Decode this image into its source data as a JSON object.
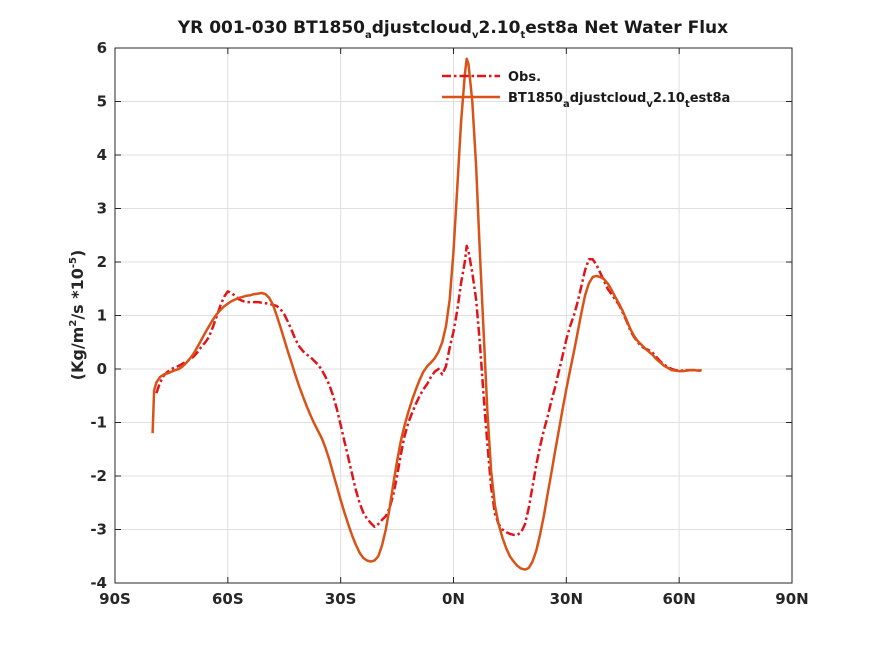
{
  "chart_data": {
    "type": "line",
    "title": {
      "prefix": "YR 001-030 BT1850",
      "parts": [
        [
          "a",
          "djustcloud"
        ],
        [
          "v",
          "2.10"
        ],
        [
          "t",
          "est8a"
        ]
      ],
      "suffix": "  Net Water Flux"
    },
    "ylabel": {
      "p1": "(Kg/m",
      "sup1": "2",
      "p2": "/s *10",
      "sup2": "-5",
      "p3": ")"
    },
    "xlim": [
      -90,
      90
    ],
    "ylim": [
      -4,
      6
    ],
    "x_ticks": [
      {
        "value": -90,
        "label": "90S"
      },
      {
        "value": -60,
        "label": "60S"
      },
      {
        "value": -30,
        "label": "30S"
      },
      {
        "value": 0,
        "label": "0N"
      },
      {
        "value": 30,
        "label": "30N"
      },
      {
        "value": 60,
        "label": "60N"
      },
      {
        "value": 90,
        "label": "90N"
      }
    ],
    "y_ticks": [
      {
        "value": -4,
        "label": "-4"
      },
      {
        "value": -3,
        "label": "-3"
      },
      {
        "value": -2,
        "label": "-2"
      },
      {
        "value": -1,
        "label": "-1"
      },
      {
        "value": 0,
        "label": "0"
      },
      {
        "value": 1,
        "label": "1"
      },
      {
        "value": 2,
        "label": "2"
      },
      {
        "value": 3,
        "label": "3"
      },
      {
        "value": 4,
        "label": "4"
      },
      {
        "value": 5,
        "label": "5"
      },
      {
        "value": 6,
        "label": "6"
      }
    ],
    "grid": true,
    "legend_position": "top-right",
    "series": [
      {
        "name": "Obs.",
        "color": "#e0151a",
        "style": "dashdot",
        "points": [
          [
            -79,
            -0.45
          ],
          [
            -78,
            -0.25
          ],
          [
            -77,
            -0.12
          ],
          [
            -76,
            -0.05
          ],
          [
            -75,
            0.0
          ],
          [
            -74,
            0.03
          ],
          [
            -73,
            0.06
          ],
          [
            -72,
            0.1
          ],
          [
            -71,
            0.14
          ],
          [
            -70,
            0.18
          ],
          [
            -69,
            0.24
          ],
          [
            -68,
            0.32
          ],
          [
            -67,
            0.42
          ],
          [
            -66,
            0.5
          ],
          [
            -65,
            0.6
          ],
          [
            -64,
            0.78
          ],
          [
            -63,
            0.98
          ],
          [
            -62,
            1.18
          ],
          [
            -61,
            1.35
          ],
          [
            -60,
            1.45
          ],
          [
            -59,
            1.42
          ],
          [
            -58,
            1.36
          ],
          [
            -57,
            1.3
          ],
          [
            -56,
            1.27
          ],
          [
            -55,
            1.25
          ],
          [
            -54,
            1.25
          ],
          [
            -53,
            1.25
          ],
          [
            -52,
            1.25
          ],
          [
            -51,
            1.24
          ],
          [
            -50,
            1.23
          ],
          [
            -49,
            1.22
          ],
          [
            -48,
            1.2
          ],
          [
            -47,
            1.18
          ],
          [
            -46,
            1.12
          ],
          [
            -45,
            1.02
          ],
          [
            -44,
            0.88
          ],
          [
            -43,
            0.72
          ],
          [
            -42,
            0.55
          ],
          [
            -41,
            0.42
          ],
          [
            -40,
            0.33
          ],
          [
            -39,
            0.27
          ],
          [
            -38,
            0.22
          ],
          [
            -37,
            0.15
          ],
          [
            -36,
            0.08
          ],
          [
            -35,
            -0.02
          ],
          [
            -34,
            -0.15
          ],
          [
            -33,
            -0.3
          ],
          [
            -32,
            -0.5
          ],
          [
            -31,
            -0.75
          ],
          [
            -30,
            -1.05
          ],
          [
            -29,
            -1.35
          ],
          [
            -28,
            -1.65
          ],
          [
            -27,
            -1.95
          ],
          [
            -26,
            -2.25
          ],
          [
            -25,
            -2.5
          ],
          [
            -24,
            -2.68
          ],
          [
            -23,
            -2.8
          ],
          [
            -22,
            -2.88
          ],
          [
            -21,
            -2.95
          ],
          [
            -20,
            -2.9
          ],
          [
            -19,
            -2.82
          ],
          [
            -18,
            -2.75
          ],
          [
            -17,
            -2.6
          ],
          [
            -16,
            -2.35
          ],
          [
            -15,
            -2.0
          ],
          [
            -14,
            -1.6
          ],
          [
            -13,
            -1.25
          ],
          [
            -12,
            -1.0
          ],
          [
            -11,
            -0.82
          ],
          [
            -10,
            -0.65
          ],
          [
            -9,
            -0.5
          ],
          [
            -8,
            -0.38
          ],
          [
            -7,
            -0.28
          ],
          [
            -6,
            -0.15
          ],
          [
            -5,
            -0.05
          ],
          [
            -4,
            0.0
          ],
          [
            -3,
            -0.1
          ],
          [
            -2,
            0.05
          ],
          [
            -1,
            0.4
          ],
          [
            0,
            0.7
          ],
          [
            1,
            1.1
          ],
          [
            2,
            1.6
          ],
          [
            3,
            2.0
          ],
          [
            3.5,
            2.3
          ],
          [
            4,
            2.2
          ],
          [
            5,
            1.8
          ],
          [
            6,
            1.3
          ],
          [
            7,
            0.5
          ],
          [
            8,
            -0.5
          ],
          [
            9,
            -1.4
          ],
          [
            10,
            -2.2
          ],
          [
            11,
            -2.7
          ],
          [
            12,
            -2.9
          ],
          [
            13,
            -3.0
          ],
          [
            14,
            -3.05
          ],
          [
            15,
            -3.08
          ],
          [
            16,
            -3.1
          ],
          [
            17,
            -3.1
          ],
          [
            18,
            -3.05
          ],
          [
            19,
            -2.9
          ],
          [
            20,
            -2.6
          ],
          [
            21,
            -2.2
          ],
          [
            22,
            -1.8
          ],
          [
            23,
            -1.45
          ],
          [
            24,
            -1.15
          ],
          [
            25,
            -0.9
          ],
          [
            26,
            -0.6
          ],
          [
            27,
            -0.35
          ],
          [
            28,
            -0.05
          ],
          [
            29,
            0.25
          ],
          [
            30,
            0.55
          ],
          [
            31,
            0.8
          ],
          [
            32,
            1.0
          ],
          [
            33,
            1.25
          ],
          [
            34,
            1.55
          ],
          [
            35,
            1.85
          ],
          [
            36,
            2.05
          ],
          [
            37,
            2.05
          ],
          [
            38,
            1.95
          ],
          [
            39,
            1.8
          ],
          [
            40,
            1.65
          ],
          [
            41,
            1.5
          ],
          [
            42,
            1.4
          ],
          [
            43,
            1.3
          ],
          [
            44,
            1.2
          ],
          [
            45,
            1.05
          ],
          [
            46,
            0.9
          ],
          [
            47,
            0.72
          ],
          [
            48,
            0.6
          ],
          [
            49,
            0.5
          ],
          [
            50,
            0.42
          ],
          [
            51,
            0.38
          ],
          [
            52,
            0.35
          ],
          [
            53,
            0.3
          ],
          [
            54,
            0.22
          ],
          [
            55,
            0.14
          ],
          [
            56,
            0.08
          ],
          [
            57,
            0.04
          ],
          [
            58,
            0.0
          ],
          [
            59,
            -0.02
          ],
          [
            60,
            -0.03
          ],
          [
            61,
            -0.03
          ],
          [
            62,
            -0.02
          ],
          [
            63,
            -0.02
          ],
          [
            64,
            -0.02
          ],
          [
            65,
            -0.03
          ],
          [
            66,
            -0.03
          ]
        ]
      },
      {
        "name": "BT1850adjustcloudv2.10test8a",
        "name_label": {
          "base": "BT1850",
          "parts": [
            [
              "a",
              "djustcloud"
            ],
            [
              "v",
              "2.10"
            ],
            [
              "t",
              "est8a"
            ]
          ]
        },
        "color": "#d95319",
        "style": "solid",
        "points": [
          [
            -80,
            -1.2
          ],
          [
            -79.6,
            -0.4
          ],
          [
            -79,
            -0.25
          ],
          [
            -78,
            -0.15
          ],
          [
            -77,
            -0.1
          ],
          [
            -76,
            -0.08
          ],
          [
            -75,
            -0.05
          ],
          [
            -74,
            -0.02
          ],
          [
            -73,
            0.0
          ],
          [
            -72,
            0.05
          ],
          [
            -71,
            0.12
          ],
          [
            -70,
            0.2
          ],
          [
            -69,
            0.3
          ],
          [
            -68,
            0.42
          ],
          [
            -67,
            0.55
          ],
          [
            -66,
            0.68
          ],
          [
            -65,
            0.8
          ],
          [
            -64,
            0.92
          ],
          [
            -63,
            1.02
          ],
          [
            -62,
            1.1
          ],
          [
            -61,
            1.17
          ],
          [
            -60,
            1.22
          ],
          [
            -59,
            1.27
          ],
          [
            -58,
            1.3
          ],
          [
            -57,
            1.33
          ],
          [
            -56,
            1.35
          ],
          [
            -55,
            1.37
          ],
          [
            -54,
            1.38
          ],
          [
            -53,
            1.4
          ],
          [
            -52,
            1.41
          ],
          [
            -51,
            1.42
          ],
          [
            -50,
            1.4
          ],
          [
            -49,
            1.33
          ],
          [
            -48,
            1.2
          ],
          [
            -47,
            1.0
          ],
          [
            -46,
            0.78
          ],
          [
            -45,
            0.55
          ],
          [
            -44,
            0.32
          ],
          [
            -43,
            0.1
          ],
          [
            -42,
            -0.12
          ],
          [
            -41,
            -0.33
          ],
          [
            -40,
            -0.52
          ],
          [
            -39,
            -0.7
          ],
          [
            -38,
            -0.87
          ],
          [
            -37,
            -1.02
          ],
          [
            -36,
            -1.16
          ],
          [
            -35,
            -1.3
          ],
          [
            -34,
            -1.48
          ],
          [
            -33,
            -1.7
          ],
          [
            -32,
            -1.95
          ],
          [
            -31,
            -2.2
          ],
          [
            -30,
            -2.45
          ],
          [
            -29,
            -2.68
          ],
          [
            -28,
            -2.9
          ],
          [
            -27,
            -3.1
          ],
          [
            -26,
            -3.28
          ],
          [
            -25,
            -3.43
          ],
          [
            -24,
            -3.53
          ],
          [
            -23,
            -3.58
          ],
          [
            -22,
            -3.6
          ],
          [
            -21,
            -3.58
          ],
          [
            -20,
            -3.5
          ],
          [
            -19,
            -3.3
          ],
          [
            -18,
            -3.0
          ],
          [
            -17,
            -2.6
          ],
          [
            -16,
            -2.15
          ],
          [
            -15,
            -1.72
          ],
          [
            -14,
            -1.35
          ],
          [
            -13,
            -1.05
          ],
          [
            -12,
            -0.8
          ],
          [
            -11,
            -0.58
          ],
          [
            -10,
            -0.38
          ],
          [
            -9,
            -0.2
          ],
          [
            -8,
            -0.05
          ],
          [
            -7,
            0.05
          ],
          [
            -6,
            0.12
          ],
          [
            -5,
            0.2
          ],
          [
            -4,
            0.32
          ],
          [
            -3,
            0.5
          ],
          [
            -2,
            0.8
          ],
          [
            -1,
            1.3
          ],
          [
            0,
            2.2
          ],
          [
            1,
            3.4
          ],
          [
            2,
            4.6
          ],
          [
            3,
            5.5
          ],
          [
            3.5,
            5.8
          ],
          [
            4,
            5.7
          ],
          [
            5,
            5.0
          ],
          [
            6,
            3.8
          ],
          [
            7,
            2.2
          ],
          [
            8,
            0.7
          ],
          [
            9,
            -0.8
          ],
          [
            10,
            -1.9
          ],
          [
            11,
            -2.55
          ],
          [
            12,
            -2.9
          ],
          [
            13,
            -3.15
          ],
          [
            14,
            -3.35
          ],
          [
            15,
            -3.5
          ],
          [
            16,
            -3.6
          ],
          [
            17,
            -3.68
          ],
          [
            18,
            -3.73
          ],
          [
            19,
            -3.75
          ],
          [
            20,
            -3.72
          ],
          [
            21,
            -3.6
          ],
          [
            22,
            -3.4
          ],
          [
            23,
            -3.1
          ],
          [
            24,
            -2.75
          ],
          [
            25,
            -2.35
          ],
          [
            26,
            -1.95
          ],
          [
            27,
            -1.55
          ],
          [
            28,
            -1.15
          ],
          [
            29,
            -0.75
          ],
          [
            30,
            -0.38
          ],
          [
            31,
            -0.02
          ],
          [
            32,
            0.32
          ],
          [
            33,
            0.68
          ],
          [
            34,
            1.05
          ],
          [
            35,
            1.38
          ],
          [
            36,
            1.6
          ],
          [
            37,
            1.72
          ],
          [
            38,
            1.74
          ],
          [
            39,
            1.72
          ],
          [
            40,
            1.68
          ],
          [
            41,
            1.6
          ],
          [
            42,
            1.48
          ],
          [
            43,
            1.35
          ],
          [
            44,
            1.22
          ],
          [
            45,
            1.08
          ],
          [
            46,
            0.92
          ],
          [
            47,
            0.75
          ],
          [
            48,
            0.62
          ],
          [
            49,
            0.52
          ],
          [
            50,
            0.45
          ],
          [
            51,
            0.38
          ],
          [
            52,
            0.32
          ],
          [
            53,
            0.26
          ],
          [
            54,
            0.18
          ],
          [
            55,
            0.12
          ],
          [
            56,
            0.06
          ],
          [
            57,
            0.02
          ],
          [
            58,
            -0.02
          ],
          [
            59,
            -0.03
          ],
          [
            60,
            -0.04
          ],
          [
            61,
            -0.04
          ],
          [
            62,
            -0.03
          ],
          [
            63,
            -0.02
          ],
          [
            64,
            -0.02
          ],
          [
            65,
            -0.03
          ],
          [
            66,
            -0.02
          ]
        ]
      }
    ]
  }
}
